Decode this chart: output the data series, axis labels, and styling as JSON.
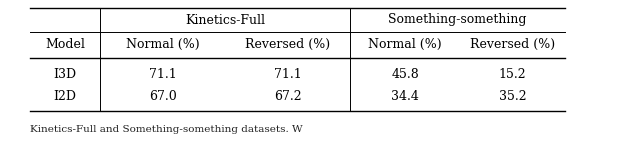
{
  "header_row1_left": "Kinetics-Full",
  "header_row1_right": "Something-something",
  "header_row2": [
    "Model",
    "Normal (%)",
    "Reversed (%)",
    "Normal (%)",
    "Reversed (%)"
  ],
  "data_rows": [
    [
      "I3D",
      "71.1",
      "71.1",
      "45.8",
      "15.2"
    ],
    [
      "I2D",
      "67.0",
      "67.2",
      "34.4",
      "35.2"
    ]
  ],
  "caption": "Kinetics-Full and Something-something datasets. W",
  "background_color": "#ffffff",
  "fontsize": 9.0,
  "caption_fontsize": 7.5,
  "font_family": "serif"
}
